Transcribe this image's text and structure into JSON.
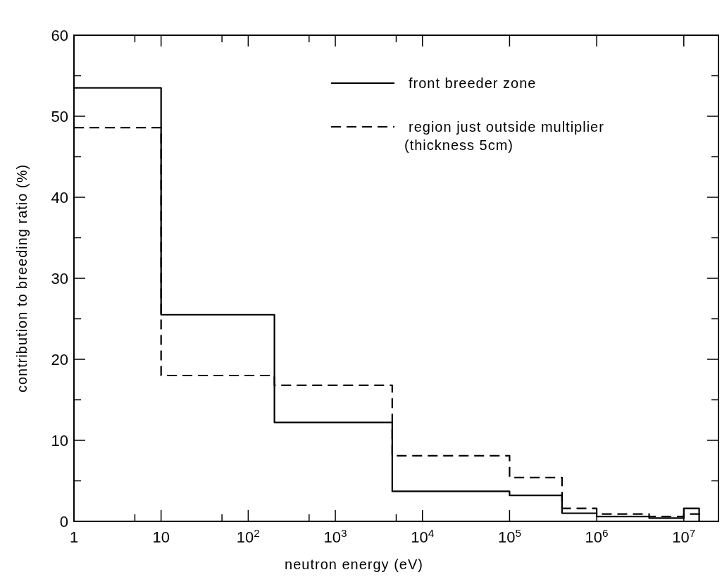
{
  "chart_data": {
    "type": "step",
    "xlabel": "neutron energy  (eV)",
    "ylabel": "contribution to breeding ratio  (%)",
    "series": [
      {
        "name": "front breeder zone",
        "color": "#000000",
        "line_style": "solid",
        "x": [
          1,
          10,
          200,
          4500,
          100000,
          400000,
          1000000,
          4000000,
          10000000,
          15000000
        ],
        "values": [
          53.5,
          25.5,
          12.2,
          3.7,
          3.2,
          1.0,
          0.6,
          0.4,
          1.6,
          0
        ]
      },
      {
        "name": "region just outside multiplier\n(thickness 5cm)",
        "color": "#000000",
        "line_style": "dashed",
        "x": [
          1,
          10,
          200,
          4500,
          100000,
          400000,
          1000000,
          4000000,
          10000000,
          15000000
        ],
        "values": [
          48.6,
          18.0,
          16.8,
          8.1,
          5.4,
          1.6,
          0.9,
          0.6,
          0.9,
          0
        ]
      }
    ],
    "log": "x",
    "xlim": [
      1,
      25000000
    ],
    "ylim": [
      0,
      60
    ],
    "xticks": [
      {
        "value": 1,
        "label": "1"
      },
      {
        "value": 5,
        "label": null
      },
      {
        "value": 10,
        "label": "10"
      },
      {
        "value": 50,
        "label": null
      },
      {
        "value": 100,
        "label": "10$^{2}$"
      },
      {
        "value": 500,
        "label": null
      },
      {
        "value": 1000,
        "label": "10$^{3}$"
      },
      {
        "value": 5000,
        "label": null
      },
      {
        "value": 10000,
        "label": "10$^{4}$"
      },
      {
        "value": 100000,
        "label": "10$^{5}$"
      },
      {
        "value": 1000000,
        "label": "10$^{6}$"
      },
      {
        "value": 10000000,
        "label": "10$^{7}$"
      }
    ],
    "yticks": [
      0,
      {
        "value": 5,
        "label": null
      },
      10,
      {
        "value": 15,
        "label": null
      },
      20,
      {
        "value": 25,
        "label": null
      },
      30,
      {
        "value": 35,
        "label": null
      },
      40,
      {
        "value": 45,
        "label": null
      },
      50,
      {
        "value": 55,
        "label": null
      },
      60
    ],
    "legend": "top right"
  }
}
